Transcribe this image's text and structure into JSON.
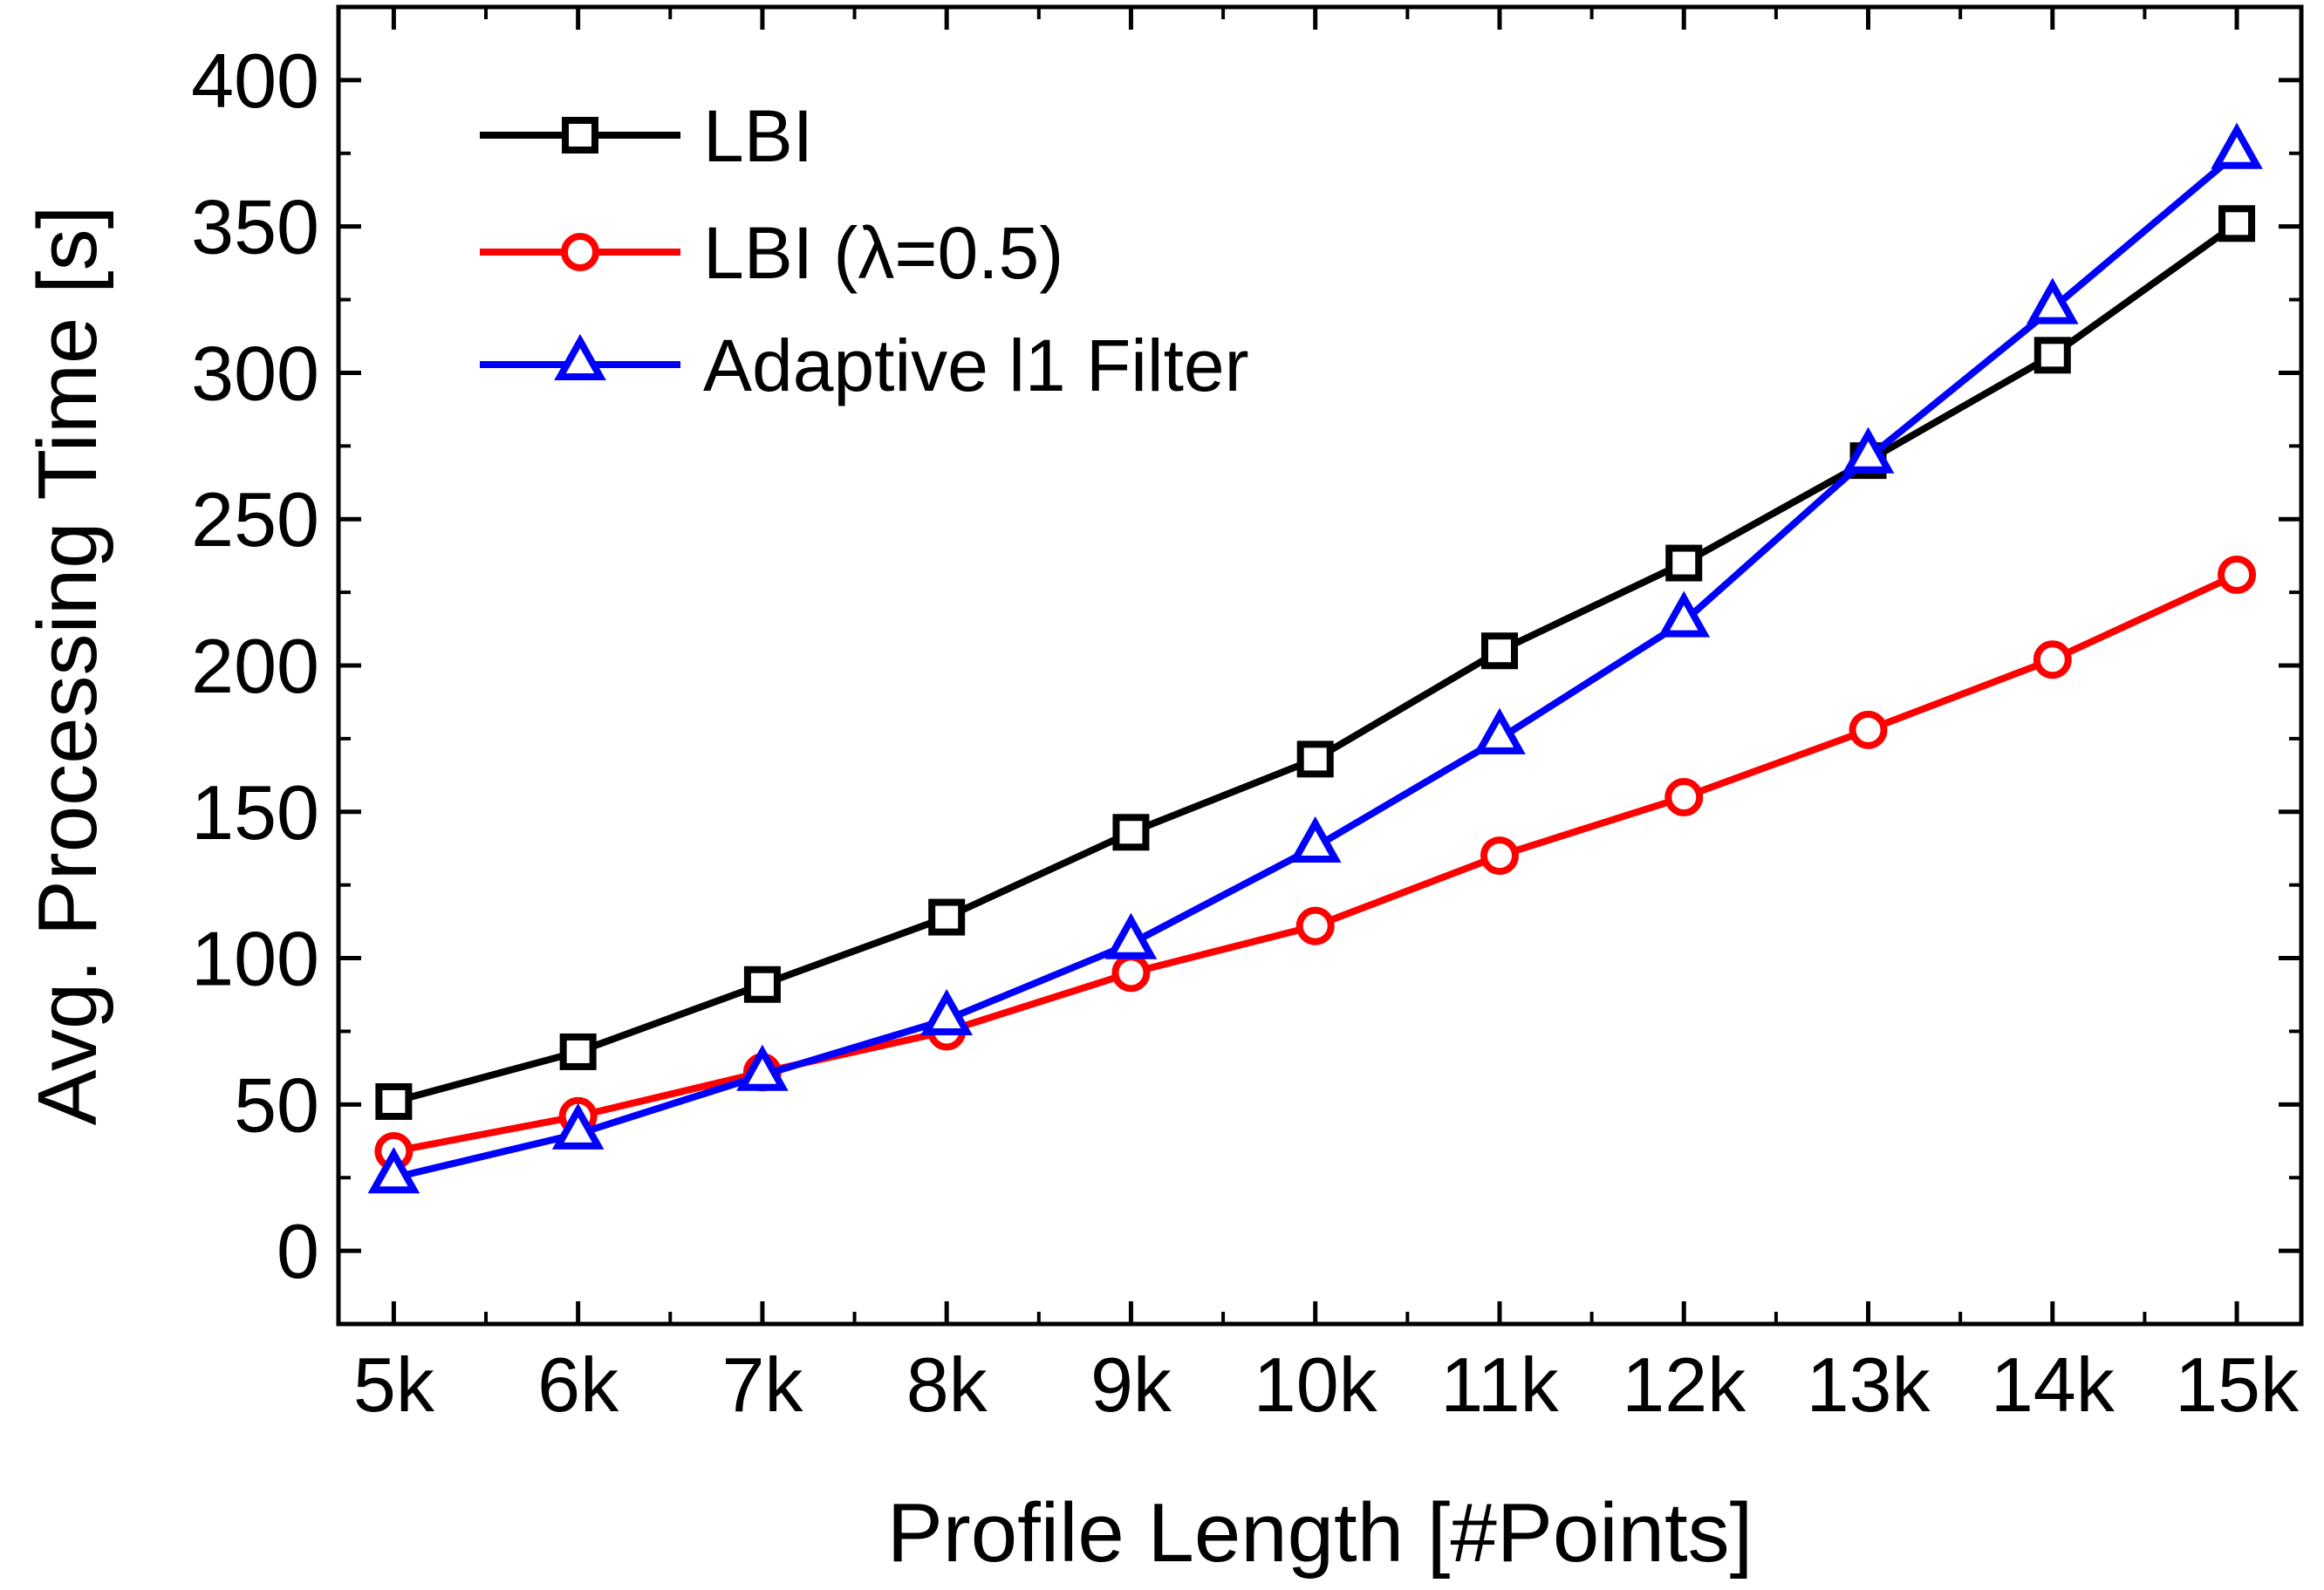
{
  "chart_data": {
    "type": "line",
    "title": "",
    "xlabel": "Profile Length [#Points]",
    "ylabel": "Avg. Processing Time [s]",
    "categories": [
      "5k",
      "6k",
      "7k",
      "8k",
      "9k",
      "10k",
      "11k",
      "12k",
      "13k",
      "14k",
      "15k"
    ],
    "x": [
      5,
      6,
      7,
      8,
      9,
      10,
      11,
      12,
      13,
      14,
      15
    ],
    "xlim": [
      4.7,
      15.35
    ],
    "ylim": [
      -25,
      425
    ],
    "yticks": [
      0,
      50,
      100,
      150,
      200,
      250,
      300,
      350,
      400
    ],
    "ytick_labels": [
      "0",
      "50",
      "100",
      "150",
      "200",
      "250",
      "300",
      "350",
      "400"
    ],
    "grid": false,
    "legend_position": "top-left",
    "series": [
      {
        "name": "LBI",
        "marker": "square",
        "color": "#000000",
        "values": [
          51,
          68,
          91,
          114,
          143,
          168,
          205,
          235,
          270,
          306,
          351
        ]
      },
      {
        "name": "LBI (λ=0.5)",
        "marker": "circle",
        "color": "#ff0000",
        "values": [
          34,
          46,
          61,
          75,
          95,
          111,
          135,
          155,
          178,
          202,
          231
        ]
      },
      {
        "name": "Adaptive l1 Filter",
        "marker": "triangle",
        "color": "#0000ff",
        "values": [
          25,
          40,
          60,
          79,
          105,
          138,
          175,
          215,
          271,
          322,
          375
        ]
      }
    ]
  }
}
